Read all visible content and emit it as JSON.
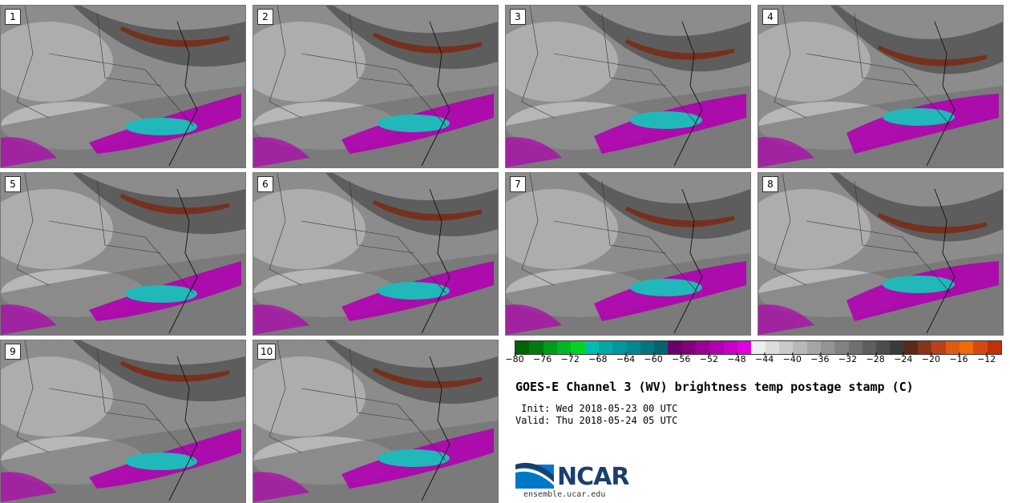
{
  "panels": [
    {
      "label": "1"
    },
    {
      "label": "2"
    },
    {
      "label": "3"
    },
    {
      "label": "4"
    },
    {
      "label": "5"
    },
    {
      "label": "6"
    },
    {
      "label": "7"
    },
    {
      "label": "8"
    },
    {
      "label": "9"
    },
    {
      "label": "10"
    }
  ],
  "colorbar": {
    "min": -80,
    "max": -10,
    "step": 2,
    "tick_labels": [
      "−80",
      "−76",
      "−72",
      "−68",
      "−64",
      "−60",
      "−56",
      "−52",
      "−48",
      "−44",
      "−40",
      "−36",
      "−32",
      "−28",
      "−24",
      "−20",
      "−16",
      "−12"
    ],
    "tick_values": [
      -80,
      -76,
      -72,
      -68,
      -64,
      -60,
      -56,
      -52,
      -48,
      -44,
      -40,
      -36,
      -32,
      -28,
      -24,
      -20,
      -16,
      -12
    ],
    "colors": [
      "#006400",
      "#007a10",
      "#009a1c",
      "#00b824",
      "#00d420",
      "#00bdb2",
      "#00a9a8",
      "#0097a0",
      "#008792",
      "#007680",
      "#006470",
      "#6a006a",
      "#82007e",
      "#9a0096",
      "#b000b0",
      "#c800c8",
      "#e000e0",
      "#eeeeee",
      "#dcdcdc",
      "#cacaca",
      "#b8b8b8",
      "#a6a6a6",
      "#949494",
      "#828282",
      "#707070",
      "#5e5e5e",
      "#4c4c4c",
      "#3a3a3a",
      "#5a2a18",
      "#8a3418",
      "#b8421a",
      "#e05a10",
      "#f06a08",
      "#d84810",
      "#c23008"
    ]
  },
  "title": "GOES-E Channel 3 (WV) brightness temp postage stamp (C)",
  "init": " Init: Wed 2018-05-23 00 UTC",
  "valid": "Valid: Thu 2018-05-24 05 UTC",
  "logo": {
    "text": "NCAR",
    "blue": "#0077c8",
    "navy": "#1a3f6e"
  },
  "site": "ensemble.ucar.edu"
}
